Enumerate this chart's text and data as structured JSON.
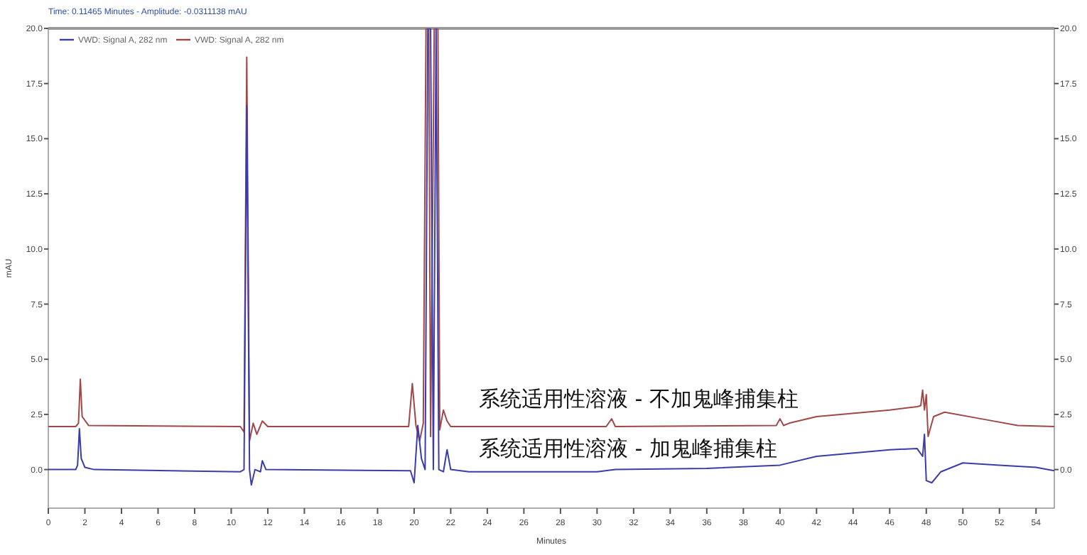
{
  "chart_data": {
    "type": "line",
    "xlabel": "Minutes",
    "ylabel": "mAU",
    "xlim": [
      0,
      55
    ],
    "ylim": [
      -1.75,
      20
    ],
    "y2lim": [
      -1.75,
      20
    ],
    "xticks": [
      0,
      2,
      4,
      6,
      8,
      10,
      12,
      14,
      16,
      18,
      20,
      22,
      24,
      26,
      28,
      30,
      32,
      34,
      36,
      38,
      40,
      42,
      44,
      46,
      48,
      50,
      52,
      54
    ],
    "yticks": [
      {
        "value": 0,
        "label": "0.0"
      },
      {
        "value": 2.5,
        "label": "2.5"
      },
      {
        "value": 5,
        "label": "5.0"
      },
      {
        "value": 7.5,
        "label": "7.5"
      },
      {
        "value": 10,
        "label": "10.0"
      },
      {
        "value": 12.5,
        "label": "12.5"
      },
      {
        "value": 15,
        "label": "15.0"
      },
      {
        "value": 17.5,
        "label": "17.5"
      },
      {
        "value": 20,
        "label": "20.0"
      }
    ],
    "y2ticks": [
      {
        "value": 0,
        "label": "0.0"
      },
      {
        "value": 2.5,
        "label": "2.5"
      },
      {
        "value": 5,
        "label": "5.0"
      },
      {
        "value": 7.5,
        "label": "7.5"
      },
      {
        "value": 10,
        "label": "10.0"
      },
      {
        "value": 12.5,
        "label": "12.5"
      },
      {
        "value": 15,
        "label": "15.0"
      },
      {
        "value": 17.5,
        "label": "17.5"
      },
      {
        "value": 20,
        "label": "20.0"
      }
    ],
    "grid": false,
    "legend": "top left",
    "marker": "none",
    "line_style": "solid",
    "series": [
      {
        "name": "VWD: Signal A, 282 nm",
        "color": "#3c3ca8",
        "x": [
          0,
          1.5,
          1.6,
          1.7,
          1.8,
          2.0,
          2.5,
          10.5,
          10.7,
          10.85,
          11.0,
          11.1,
          11.3,
          11.6,
          11.7,
          11.9,
          19.8,
          20.0,
          20.2,
          20.4,
          20.6,
          20.75,
          20.9,
          21.05,
          21.2,
          21.35,
          21.6,
          21.8,
          22.0,
          23,
          30,
          31,
          36,
          40,
          42,
          46,
          47.5,
          47.8,
          47.9,
          48.0,
          48.3,
          48.8,
          50,
          52,
          54,
          55
        ],
        "values": [
          0,
          0,
          0.2,
          1.85,
          0.5,
          0.1,
          0,
          -0.1,
          0,
          16.5,
          0,
          -0.7,
          0,
          -0.1,
          0.4,
          0,
          -0.05,
          -0.6,
          2.0,
          0.5,
          0,
          20,
          20,
          0,
          20,
          0,
          -0.1,
          0.9,
          0,
          -0.1,
          -0.1,
          0,
          0.05,
          0.2,
          0.6,
          0.9,
          0.95,
          0.6,
          1.6,
          -0.5,
          -0.6,
          -0.1,
          0.3,
          0.2,
          0.1,
          -0.05
        ]
      },
      {
        "name": "VWD: Signal A, 282 nm",
        "color": "#a04848",
        "x": [
          0,
          1.5,
          1.65,
          1.75,
          1.85,
          2.2,
          10.5,
          10.7,
          10.85,
          11.0,
          11.2,
          11.4,
          11.7,
          12,
          19.7,
          19.9,
          20.1,
          20.3,
          20.5,
          20.65,
          20.8,
          20.9,
          21.1,
          21.3,
          21.4,
          21.6,
          21.8,
          22.0,
          30.5,
          30.8,
          31.0,
          39.8,
          40.0,
          40.2,
          40.5,
          42,
          46,
          47.5,
          47.7,
          47.8,
          47.9,
          48.0,
          48.1,
          48.4,
          49,
          51,
          53,
          55
        ],
        "values": [
          1.95,
          1.95,
          2.1,
          4.1,
          2.4,
          2.0,
          1.95,
          1.7,
          18.7,
          1.3,
          2.1,
          1.6,
          2.2,
          1.95,
          1.95,
          3.9,
          2.0,
          1.3,
          2.1,
          20,
          20,
          1.5,
          20,
          20,
          1.8,
          2.7,
          2.2,
          1.95,
          1.95,
          2.3,
          1.95,
          2.0,
          2.3,
          2.0,
          2.1,
          2.4,
          2.7,
          2.85,
          2.9,
          3.6,
          2.7,
          3.4,
          1.5,
          2.4,
          2.6,
          2.3,
          2.0,
          1.95
        ]
      }
    ],
    "annotations": [
      "Time: 0.11465 Minutes - Amplitude: -0.0311138 mAU",
      "系统适用性溶液 - 不加鬼峰捕集柱",
      "系统适用性溶液 - 加鬼峰捕集柱"
    ]
  }
}
